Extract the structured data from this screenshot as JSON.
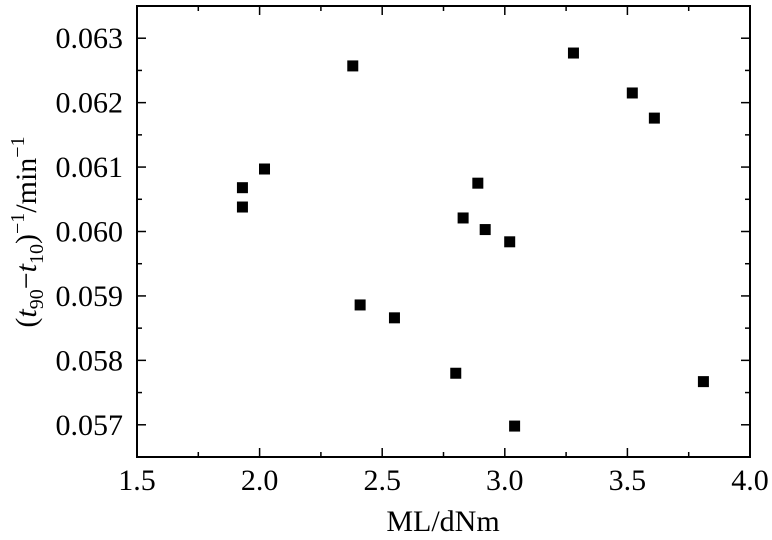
{
  "chart_data": {
    "type": "scatter",
    "title": "",
    "xlabel": "ML/dNm",
    "ylabel": "(t90−t10)−1/min−1",
    "ylabel_parts": {
      "open": "(",
      "t1": "t",
      "sub1": "90",
      "minus": "−",
      "t2": "t",
      "sub2": "10",
      "close": ")",
      "sup1": "−1",
      "unit": "/min",
      "sup2": "−1"
    },
    "xlim": [
      1.5,
      4.0
    ],
    "ylim": [
      0.0565,
      0.0635
    ],
    "x_ticks": [
      "1.5",
      "2.0",
      "2.5",
      "3.0",
      "3.5",
      "4.0"
    ],
    "y_ticks": [
      "0.057",
      "0.058",
      "0.059",
      "0.060",
      "0.061",
      "0.062",
      "0.063"
    ],
    "grid": false,
    "marker": "square",
    "color": "#000000",
    "points": [
      {
        "x": 1.93,
        "y": 0.06068
      },
      {
        "x": 1.93,
        "y": 0.06038
      },
      {
        "x": 2.02,
        "y": 0.06097
      },
      {
        "x": 2.38,
        "y": 0.06257
      },
      {
        "x": 2.41,
        "y": 0.05886
      },
      {
        "x": 2.55,
        "y": 0.05866
      },
      {
        "x": 2.8,
        "y": 0.0578
      },
      {
        "x": 2.83,
        "y": 0.06021
      },
      {
        "x": 2.89,
        "y": 0.06075
      },
      {
        "x": 2.92,
        "y": 0.06003
      },
      {
        "x": 3.02,
        "y": 0.05984
      },
      {
        "x": 3.04,
        "y": 0.05698
      },
      {
        "x": 3.28,
        "y": 0.06277
      },
      {
        "x": 3.52,
        "y": 0.06215
      },
      {
        "x": 3.61,
        "y": 0.06176
      },
      {
        "x": 3.81,
        "y": 0.05767
      }
    ]
  }
}
